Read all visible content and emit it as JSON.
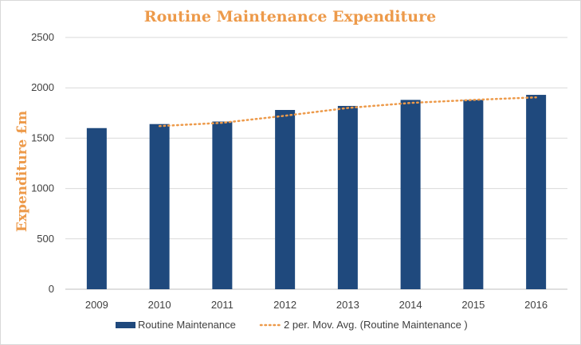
{
  "chart_data": {
    "type": "bar",
    "title": "Routine Maintenance Expenditure",
    "xlabel": "",
    "ylabel": "Expenditure £m",
    "categories": [
      "2009",
      "2010",
      "2011",
      "2012",
      "2013",
      "2014",
      "2015",
      "2016"
    ],
    "series": [
      {
        "name": "Routine Maintenance",
        "type": "bar",
        "color": "#1f497d",
        "values": [
          1600,
          1640,
          1665,
          1780,
          1820,
          1880,
          1880,
          1930
        ]
      },
      {
        "name": "2 per. Mov. Avg. (Routine Maintenance )",
        "type": "line",
        "style": "dotted",
        "color": "#ed9a4a",
        "values": [
          null,
          1620,
          1652.5,
          1722.5,
          1800,
          1850,
          1880,
          1905
        ]
      }
    ],
    "ylim": [
      0,
      2500
    ],
    "yticks": [
      0,
      500,
      1000,
      1500,
      2000,
      2500
    ],
    "grid": "horizontal",
    "legend_position": "bottom"
  }
}
